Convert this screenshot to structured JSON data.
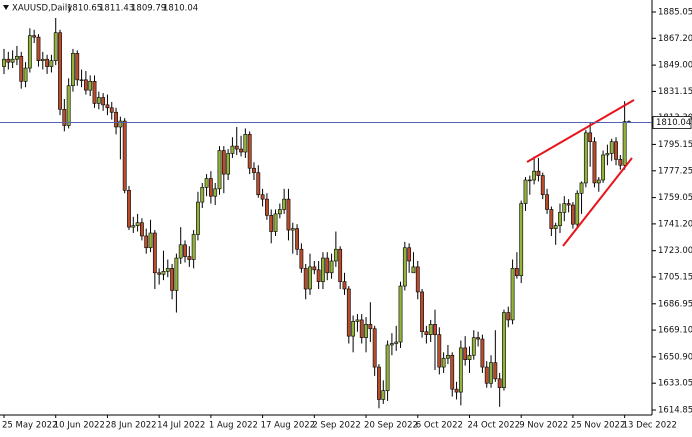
{
  "chart_data": {
    "type": "candlestick",
    "title": "XAUUSD,Daily",
    "bull_color": "#93b23c",
    "bear_color": "#b84c2c",
    "price_line_color": "#5560b0",
    "ylim": [
      1611.45,
      1888.45
    ],
    "yticks": [
      1614.85,
      1633.05,
      {
        "value": 1650.9,
        "label": "1650.90"
      },
      {
        "value": 1669.1,
        "label": "1669.10"
      },
      1686.95,
      1705.15,
      {
        "value": 1723.0,
        "label": "1723.00"
      },
      {
        "value": 1741.2,
        "label": "1741.20"
      },
      1759.05,
      1777.25,
      1795.15,
      {
        "value": 1813.3,
        "label": "1813.30"
      },
      1831.15,
      {
        "value": 1849.0,
        "label": "1849.00"
      },
      {
        "value": 1867.2,
        "label": "1867.20"
      },
      1885.05
    ],
    "categories": [
      "25 May 2022",
      null,
      null,
      null,
      null,
      null,
      null,
      null,
      null,
      null,
      null,
      null,
      "10 Jun 2022",
      null,
      null,
      null,
      null,
      null,
      null,
      null,
      null,
      null,
      null,
      null,
      "28 Jun 2022",
      null,
      null,
      null,
      null,
      null,
      null,
      null,
      null,
      null,
      null,
      null,
      "14 Jul 2022",
      null,
      null,
      null,
      null,
      null,
      null,
      null,
      null,
      null,
      null,
      null,
      "1 Aug 2022",
      null,
      null,
      null,
      null,
      null,
      null,
      null,
      null,
      null,
      null,
      null,
      "17 Aug 2022",
      null,
      null,
      null,
      null,
      null,
      null,
      null,
      null,
      null,
      null,
      null,
      "2 Sep 2022",
      null,
      null,
      null,
      null,
      null,
      null,
      null,
      null,
      null,
      null,
      null,
      "20 Sep 2022",
      null,
      null,
      null,
      null,
      null,
      null,
      null,
      null,
      null,
      null,
      null,
      "6 Oct 2022",
      null,
      null,
      null,
      null,
      null,
      null,
      null,
      null,
      null,
      null,
      null,
      "24 Oct 2022",
      null,
      null,
      null,
      null,
      null,
      null,
      null,
      null,
      null,
      null,
      null,
      "9 Nov 2022",
      null,
      null,
      null,
      null,
      null,
      null,
      null,
      null,
      null,
      null,
      null,
      "25 Nov 2022",
      null,
      null,
      null,
      null,
      null,
      null,
      null,
      null,
      null,
      null,
      null,
      "13 Dec 2022",
      null
    ],
    "candles": [
      [
        1848,
        1860,
        1843,
        1853
      ],
      [
        1853,
        1858,
        1846,
        1851
      ],
      [
        1851,
        1859,
        1847,
        1853
      ],
      [
        1853,
        1862,
        1849,
        1855
      ],
      [
        1855,
        1858,
        1833,
        1838
      ],
      [
        1838,
        1851,
        1834,
        1847
      ],
      [
        1847,
        1874,
        1844,
        1869
      ],
      [
        1869,
        1873,
        1864,
        1868
      ],
      [
        1868,
        1870,
        1848,
        1852
      ],
      [
        1852,
        1858,
        1846,
        1853
      ],
      [
        1853,
        1856,
        1843,
        1848
      ],
      [
        1848,
        1856,
        1844,
        1852
      ],
      [
        1852,
        1881,
        1849,
        1871
      ],
      [
        1871,
        1873,
        1815,
        1819
      ],
      [
        1819,
        1826,
        1804,
        1808
      ],
      [
        1808,
        1840,
        1806,
        1835
      ],
      [
        1835,
        1860,
        1831,
        1857
      ],
      [
        1857,
        1859,
        1835,
        1839
      ],
      [
        1839,
        1846,
        1834,
        1839
      ],
      [
        1839,
        1845,
        1829,
        1832
      ],
      [
        1832,
        1842,
        1828,
        1838
      ],
      [
        1838,
        1842,
        1820,
        1823
      ],
      [
        1823,
        1831,
        1819,
        1827
      ],
      [
        1827,
        1830,
        1818,
        1822
      ],
      [
        1822,
        1829,
        1815,
        1820
      ],
      [
        1820,
        1824,
        1812,
        1817
      ],
      [
        1817,
        1820,
        1802,
        1807
      ],
      [
        1807,
        1814,
        1785,
        1811
      ],
      [
        1811,
        1813,
        1762,
        1764
      ],
      [
        1764,
        1767,
        1737,
        1739
      ],
      [
        1739,
        1746,
        1735,
        1740
      ],
      [
        1740,
        1748,
        1736,
        1742
      ],
      [
        1742,
        1745,
        1730,
        1733
      ],
      [
        1733,
        1738,
        1721,
        1725
      ],
      [
        1725,
        1744,
        1722,
        1735
      ],
      [
        1735,
        1737,
        1697,
        1708
      ],
      [
        1708,
        1711,
        1700,
        1707
      ],
      [
        1707,
        1723,
        1703,
        1709
      ],
      [
        1709,
        1717,
        1705,
        1711
      ],
      [
        1711,
        1714,
        1690,
        1696
      ],
      [
        1696,
        1721,
        1681,
        1718
      ],
      [
        1718,
        1739,
        1714,
        1727
      ],
      [
        1727,
        1730,
        1715,
        1719
      ],
      [
        1719,
        1726,
        1712,
        1717
      ],
      [
        1717,
        1737,
        1711,
        1734
      ],
      [
        1734,
        1763,
        1730,
        1756
      ],
      [
        1756,
        1769,
        1752,
        1766
      ],
      [
        1766,
        1775,
        1760,
        1772
      ],
      [
        1772,
        1777,
        1755,
        1760
      ],
      [
        1760,
        1769,
        1754,
        1765
      ],
      [
        1765,
        1794,
        1761,
        1791
      ],
      [
        1791,
        1794,
        1762,
        1775
      ],
      [
        1775,
        1792,
        1771,
        1789
      ],
      [
        1789,
        1800,
        1786,
        1794
      ],
      [
        1794,
        1807,
        1788,
        1792
      ],
      [
        1792,
        1801,
        1787,
        1790
      ],
      [
        1790,
        1806,
        1786,
        1802
      ],
      [
        1802,
        1804,
        1775,
        1779
      ],
      [
        1779,
        1783,
        1771,
        1776
      ],
      [
        1776,
        1781,
        1759,
        1761
      ],
      [
        1761,
        1765,
        1753,
        1758
      ],
      [
        1758,
        1762,
        1744,
        1747
      ],
      [
        1747,
        1751,
        1728,
        1736
      ],
      [
        1736,
        1751,
        1733,
        1748
      ],
      [
        1748,
        1755,
        1745,
        1751
      ],
      [
        1751,
        1765,
        1748,
        1758
      ],
      [
        1758,
        1765,
        1730,
        1737
      ],
      [
        1737,
        1742,
        1721,
        1738
      ],
      [
        1738,
        1741,
        1720,
        1724
      ],
      [
        1724,
        1728,
        1708,
        1711
      ],
      [
        1711,
        1714,
        1690,
        1697
      ],
      [
        1697,
        1721,
        1693,
        1712
      ],
      [
        1712,
        1716,
        1707,
        1710
      ],
      [
        1710,
        1716,
        1697,
        1702
      ],
      [
        1702,
        1722,
        1697,
        1718
      ],
      [
        1718,
        1722,
        1703,
        1708
      ],
      [
        1708,
        1721,
        1704,
        1716
      ],
      [
        1716,
        1736,
        1712,
        1724
      ],
      [
        1724,
        1726,
        1697,
        1702
      ],
      [
        1702,
        1708,
        1693,
        1697
      ],
      [
        1697,
        1699,
        1660,
        1665
      ],
      [
        1665,
        1679,
        1654,
        1675
      ],
      [
        1675,
        1680,
        1668,
        1676
      ],
      [
        1676,
        1680,
        1660,
        1664
      ],
      [
        1664,
        1678,
        1654,
        1673
      ],
      [
        1673,
        1688,
        1661,
        1670
      ],
      [
        1670,
        1672,
        1638,
        1644
      ],
      [
        1644,
        1646,
        1616,
        1622
      ],
      [
        1622,
        1635,
        1619,
        1628
      ],
      [
        1628,
        1662,
        1621,
        1659
      ],
      [
        1659,
        1667,
        1652,
        1660
      ],
      [
        1660,
        1672,
        1655,
        1661
      ],
      [
        1661,
        1702,
        1657,
        1699
      ],
      [
        1699,
        1729,
        1696,
        1725
      ],
      [
        1725,
        1728,
        1708,
        1716
      ],
      [
        1708,
        1722,
        1708,
        1712
      ],
      [
        1712,
        1716,
        1690,
        1695
      ],
      [
        1695,
        1697,
        1664,
        1668
      ],
      [
        1668,
        1672,
        1660,
        1666
      ],
      [
        1666,
        1676,
        1661,
        1673
      ],
      [
        1673,
        1683,
        1642,
        1666
      ],
      [
        1666,
        1671,
        1639,
        1644
      ],
      [
        1644,
        1654,
        1640,
        1650
      ],
      [
        1650,
        1659,
        1646,
        1652
      ],
      [
        1652,
        1654,
        1624,
        1629
      ],
      [
        1629,
        1634,
        1622,
        1627
      ],
      [
        1627,
        1662,
        1618,
        1657
      ],
      [
        1657,
        1665,
        1645,
        1649
      ],
      [
        1649,
        1658,
        1640,
        1652
      ],
      [
        1652,
        1669,
        1649,
        1664
      ],
      [
        1664,
        1668,
        1658,
        1663
      ],
      [
        1663,
        1666,
        1640,
        1644
      ],
      [
        1644,
        1648,
        1630,
        1633
      ],
      [
        1633,
        1652,
        1630,
        1647
      ],
      [
        1647,
        1669,
        1634,
        1636
      ],
      [
        1636,
        1640,
        1617,
        1630
      ],
      [
        1630,
        1683,
        1628,
        1681
      ],
      [
        1681,
        1685,
        1671,
        1676
      ],
      [
        1676,
        1717,
        1673,
        1711
      ],
      [
        1711,
        1722,
        1704,
        1706
      ],
      [
        1706,
        1757,
        1701,
        1755
      ],
      [
        1755,
        1773,
        1750,
        1771
      ],
      [
        1771,
        1774,
        1761,
        1771
      ],
      [
        1771,
        1787,
        1768,
        1777
      ],
      [
        1777,
        1786,
        1770,
        1774
      ],
      [
        1774,
        1776,
        1758,
        1761
      ],
      [
        1761,
        1765,
        1748,
        1751
      ],
      [
        1751,
        1753,
        1733,
        1738
      ],
      [
        1738,
        1742,
        1727,
        1740
      ],
      [
        1740,
        1755,
        1735,
        1749
      ],
      [
        1749,
        1760,
        1743,
        1755
      ],
      [
        1755,
        1758,
        1749,
        1754
      ],
      [
        1754,
        1756,
        1738,
        1741
      ],
      [
        1741,
        1764,
        1738,
        1762
      ],
      [
        1762,
        1770,
        1748,
        1769
      ],
      [
        1769,
        1805,
        1766,
        1803
      ],
      [
        1803,
        1810,
        1780,
        1797
      ],
      [
        1797,
        1800,
        1766,
        1769
      ],
      [
        1769,
        1773,
        1763,
        1771
      ],
      [
        1771,
        1791,
        1769,
        1788
      ],
      [
        1788,
        1795,
        1781,
        1789
      ],
      [
        1789,
        1799,
        1784,
        1797
      ],
      [
        1797,
        1800,
        1781,
        1785
      ],
      [
        1785,
        1788,
        1778,
        1781
      ],
      [
        1781,
        1824.5,
        1778,
        1810.65
      ],
      [
        1810.65,
        1811.43,
        1809.79,
        1810.04
      ]
    ]
  }
}
